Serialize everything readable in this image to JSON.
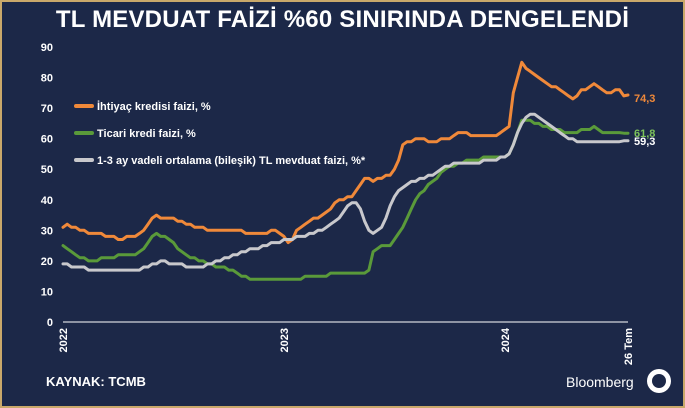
{
  "header": {
    "title": "TL MEVDUAT FAİZİ %60 SINIRINDA DENGELENDİ"
  },
  "footer": {
    "source": "KAYNAK: TCMB",
    "brand": "Bloomberg"
  },
  "chart_data": {
    "type": "line",
    "ylim": [
      0,
      90
    ],
    "yticks": [
      "0",
      "10",
      "20",
      "30",
      "40",
      "50",
      "60",
      "70",
      "80",
      "90"
    ],
    "xticks": [
      {
        "label": "2022",
        "x": 0
      },
      {
        "label": "2023",
        "x": 52
      },
      {
        "label": "2024",
        "x": 104
      },
      {
        "label": "26 Tem",
        "x": 133
      }
    ],
    "legend_position": "top-left",
    "series": [
      {
        "name": "İhtiyaç kredisi faizi, %",
        "color": "#f0893a",
        "end_label": "74,3",
        "values": [
          31,
          32,
          31,
          31,
          30,
          30,
          29,
          29,
          29,
          29,
          28,
          28,
          28,
          27,
          27,
          28,
          28,
          28,
          29,
          30,
          32,
          34,
          35,
          34,
          34,
          34,
          34,
          33,
          33,
          32,
          32,
          31,
          31,
          31,
          30,
          30,
          30,
          30,
          30,
          30,
          30,
          30,
          30,
          29,
          29,
          29,
          29,
          29,
          29,
          30,
          30,
          29,
          28,
          26,
          27,
          30,
          31,
          32,
          33,
          34,
          34,
          35,
          36,
          37,
          39,
          40,
          40,
          41,
          41,
          43,
          45,
          47,
          47,
          46,
          47,
          47,
          48,
          48,
          50,
          53,
          58,
          59,
          59,
          60,
          60,
          60,
          59,
          59,
          59,
          60,
          60,
          60,
          61,
          62,
          62,
          62,
          61,
          61,
          61,
          61,
          61,
          61,
          61,
          62,
          63,
          64,
          75,
          80,
          85,
          83,
          82,
          81,
          80,
          79,
          78,
          77,
          77,
          76,
          75,
          74,
          73,
          74,
          76,
          76,
          77,
          78,
          77,
          76,
          75,
          75,
          76,
          76,
          74,
          74.3
        ]
      },
      {
        "name": "Ticari kredi faizi, %",
        "color": "#5a9a3a",
        "end_label": "61,8",
        "values": [
          25,
          24,
          23,
          22,
          21,
          21,
          20,
          20,
          20,
          21,
          21,
          21,
          21,
          22,
          22,
          22,
          22,
          22,
          23,
          24,
          26,
          28,
          29,
          28,
          28,
          27,
          26,
          24,
          23,
          22,
          21,
          21,
          20,
          20,
          19,
          19,
          18,
          18,
          18,
          17,
          17,
          16,
          15,
          15,
          14,
          14,
          14,
          14,
          14,
          14,
          14,
          14,
          14,
          14,
          14,
          14,
          14,
          15,
          15,
          15,
          15,
          15,
          15,
          16,
          16,
          16,
          16,
          16,
          16,
          16,
          16,
          16,
          17,
          23,
          24,
          25,
          25,
          25,
          27,
          29,
          31,
          34,
          37,
          40,
          42,
          43,
          45,
          46,
          47,
          49,
          50,
          51,
          51,
          52,
          52,
          53,
          53,
          53,
          53,
          54,
          54,
          54,
          54,
          54,
          54,
          55,
          58,
          62,
          66,
          66,
          66,
          65,
          65,
          64,
          64,
          63,
          63,
          63,
          62,
          62,
          62,
          62,
          63,
          63,
          63,
          64,
          63,
          62,
          62,
          62,
          62,
          62,
          61.8,
          61.8
        ]
      },
      {
        "name": "1-3 ay vadeli ortalama (bileşik) TL mevduat faizi, %*",
        "color": "#c8c8cc",
        "end_label": "59,3",
        "values": [
          19,
          19,
          18,
          18,
          18,
          18,
          17,
          17,
          17,
          17,
          17,
          17,
          17,
          17,
          17,
          17,
          17,
          17,
          17,
          18,
          18,
          19,
          19,
          20,
          20,
          19,
          19,
          19,
          19,
          18,
          18,
          18,
          18,
          18,
          19,
          19,
          20,
          20,
          21,
          21,
          22,
          22,
          23,
          23,
          24,
          24,
          24,
          25,
          25,
          26,
          26,
          26,
          27,
          27,
          27,
          28,
          28,
          28,
          29,
          29,
          30,
          30,
          31,
          32,
          33,
          34,
          36,
          38,
          39,
          39,
          37,
          33,
          30,
          29,
          30,
          31,
          34,
          38,
          41,
          43,
          44,
          45,
          46,
          46,
          47,
          47,
          48,
          48,
          49,
          50,
          51,
          51,
          52,
          52,
          52,
          52,
          52,
          52,
          52,
          53,
          53,
          53,
          53,
          54,
          54,
          55,
          58,
          62,
          65,
          67,
          68,
          68,
          67,
          66,
          65,
          64,
          63,
          62,
          61,
          60,
          60,
          59,
          59,
          59,
          59,
          59,
          59,
          59,
          59,
          59,
          59,
          59,
          59.3,
          59.3
        ]
      }
    ]
  }
}
